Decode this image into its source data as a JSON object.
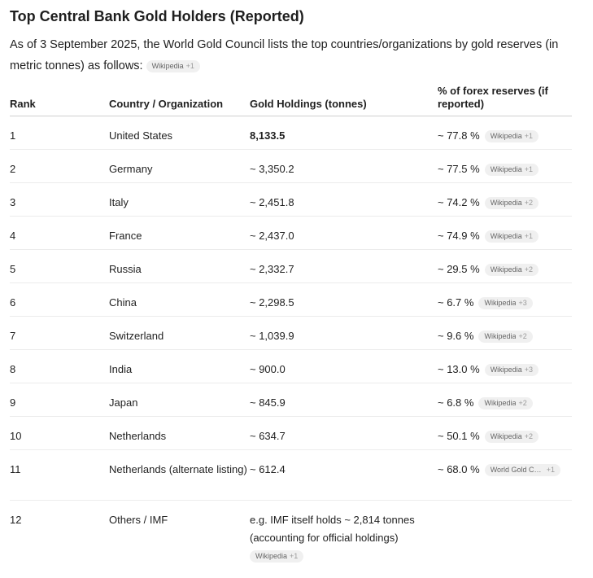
{
  "title": "Top Central Bank Gold Holders (Reported)",
  "intro": {
    "text": "As of 3 September 2025, the World Gold Council lists the top countries/organizations by gold reserves (in metric tonnes) as follows:",
    "chip": {
      "label": "Wikipedia",
      "count": "+1"
    }
  },
  "table": {
    "headers": [
      "Rank",
      "Country / Organization",
      "Gold Holdings (tonnes)",
      "% of forex reserves (if reported)"
    ],
    "rows": [
      {
        "rank": "1",
        "country": "United States",
        "holdings": "8,133.5",
        "pct": "~ 77.8 %",
        "chip_label": "Wikipedia",
        "chip_count": "+1"
      },
      {
        "rank": "2",
        "country": "Germany",
        "holdings": "~ 3,350.2",
        "pct": "~ 77.5 %",
        "chip_label": "Wikipedia",
        "chip_count": "+1"
      },
      {
        "rank": "3",
        "country": "Italy",
        "holdings": "~ 2,451.8",
        "pct": "~ 74.2 %",
        "chip_label": "Wikipedia",
        "chip_count": "+2"
      },
      {
        "rank": "4",
        "country": "France",
        "holdings": "~ 2,437.0",
        "pct": "~ 74.9 %",
        "chip_label": "Wikipedia",
        "chip_count": "+1"
      },
      {
        "rank": "5",
        "country": "Russia",
        "holdings": "~ 2,332.7",
        "pct": "~ 29.5 %",
        "chip_label": "Wikipedia",
        "chip_count": "+2"
      },
      {
        "rank": "6",
        "country": "China",
        "holdings": "~ 2,298.5",
        "pct": "~ 6.7 %",
        "chip_label": "Wikipedia",
        "chip_count": "+3"
      },
      {
        "rank": "7",
        "country": "Switzerland",
        "holdings": "~ 1,039.9",
        "pct": "~ 9.6 %",
        "chip_label": "Wikipedia",
        "chip_count": "+2"
      },
      {
        "rank": "8",
        "country": "India",
        "holdings": "~ 900.0",
        "pct": "~ 13.0 %",
        "chip_label": "Wikipedia",
        "chip_count": "+3"
      },
      {
        "rank": "9",
        "country": "Japan",
        "holdings": "~ 845.9",
        "pct": "~ 6.8 %",
        "chip_label": "Wikipedia",
        "chip_count": "+2"
      },
      {
        "rank": "10",
        "country": "Netherlands",
        "holdings": "~ 634.7",
        "pct": "~ 50.1 %",
        "chip_label": "Wikipedia",
        "chip_count": "+2"
      },
      {
        "rank": "11",
        "country": "Netherlands (alternate listing)",
        "holdings": "~ 612.4",
        "pct": "~ 68.0 %",
        "chip_label": "World Gold Cou...",
        "chip_count": "+1"
      },
      {
        "rank": "12",
        "country": "Others / IMF",
        "holdings": "e.g. IMF itself holds ~ 2,814 tonnes (accounting for official holdings)",
        "pct": "",
        "holdings_chip_label": "Wikipedia",
        "holdings_chip_count": "+1"
      }
    ]
  }
}
